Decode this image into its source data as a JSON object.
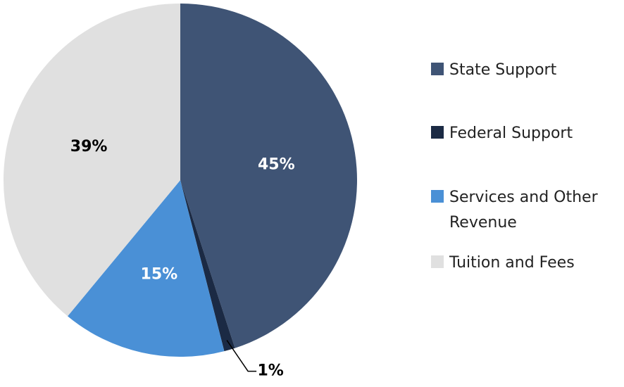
{
  "chart_data": {
    "type": "pie",
    "categories": [
      "State Support",
      "Federal Support",
      "Services and Other Revenue",
      "Tuition and Fees"
    ],
    "values": [
      45,
      1,
      15,
      39
    ],
    "value_labels": [
      "45%",
      "1%",
      "15%",
      "39%"
    ],
    "colors": [
      "#3f5475",
      "#1b2a44",
      "#4a90d6",
      "#e0e0e0"
    ],
    "label_colors": [
      "#ffffff",
      "#000000",
      "#ffffff",
      "#000000"
    ]
  }
}
